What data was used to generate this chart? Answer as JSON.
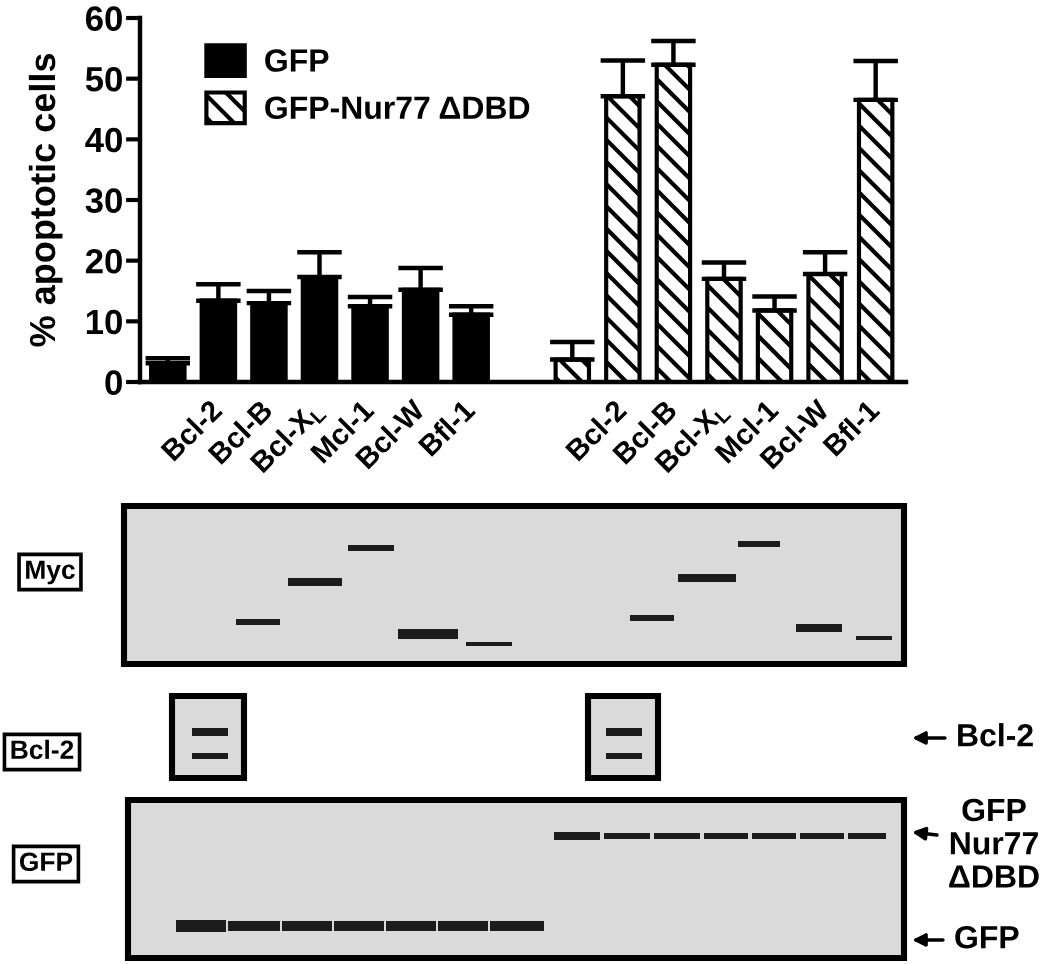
{
  "chart_data": {
    "type": "bar",
    "ylabel": "% apoptotic cells",
    "categories": [
      null,
      "Bcl-2",
      "Bcl-B",
      "Bcl-X$_{L}$",
      "Mcl-1",
      "Bcl-W",
      "Bfl-1",
      null,
      null,
      "Bcl-2",
      "Bcl-B",
      "Bcl-X$_{L}$",
      "Mcl-1",
      "Bcl-W",
      "Bfl-1"
    ],
    "series": [
      {
        "name": "GFP",
        "color": "#000000",
        "values": [
          3.1,
          13.4,
          13.0,
          17.3,
          12.5,
          15.2,
          11.1,
          null,
          null,
          null,
          null,
          null,
          null,
          null,
          null
        ],
        "errors": [
          [
            3.1,
            3.9
          ],
          [
            13.4,
            16.1
          ],
          [
            13.0,
            15.0
          ],
          [
            17.3,
            21.4
          ],
          [
            12.5,
            14.0
          ],
          [
            15.2,
            18.8
          ],
          [
            11.1,
            12.5
          ],
          null,
          null,
          null,
          null,
          null,
          null,
          null,
          null
        ]
      },
      {
        "name": "GFP-Nur77 ΔDBD",
        "color": "#000000",
        "values": [
          null,
          null,
          null,
          null,
          null,
          null,
          null,
          null,
          3.7,
          47.1,
          52.3,
          17.0,
          11.8,
          17.8,
          46.5
        ],
        "errors": [
          null,
          null,
          null,
          null,
          null,
          null,
          null,
          null,
          [
            3.7,
            6.6
          ],
          [
            47.1,
            53.0
          ],
          [
            52.3,
            56.2
          ],
          [
            17.0,
            19.7
          ],
          [
            11.8,
            14.1
          ],
          [
            17.8,
            21.4
          ],
          [
            46.5,
            52.9
          ]
        ]
      }
    ],
    "ylim": [
      0,
      60
    ],
    "yticks": [
      0,
      10,
      20,
      30,
      40,
      50,
      60
    ],
    "legend": "top left",
    "annotations": [
      "Myc",
      "Bcl-2",
      "GFP",
      "Bcl-2",
      "GFP\nNur77\nΔDBD",
      "GFP"
    ]
  }
}
